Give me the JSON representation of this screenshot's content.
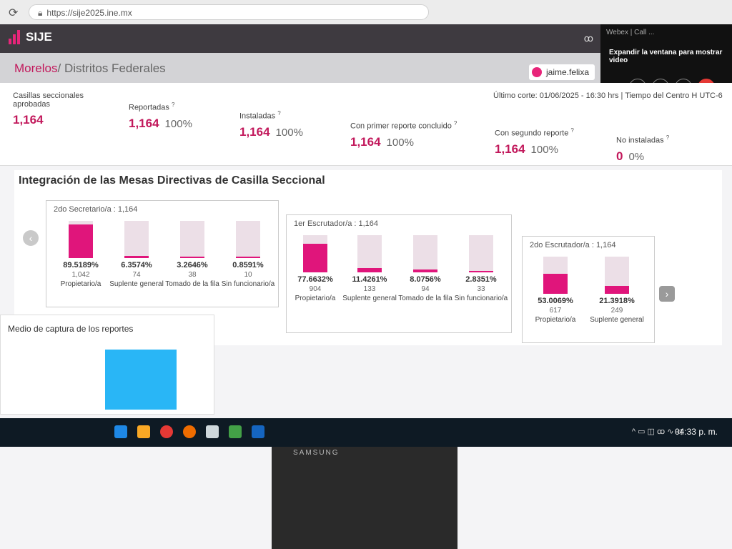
{
  "browser": {
    "url": "https://sije2025.ine.mx"
  },
  "app": {
    "logo_text": "SIJE",
    "extension_label": "ꝏ"
  },
  "video_panel": {
    "title": "Webex | Call ...",
    "message": "Expandir la ventana para mostrar video"
  },
  "breadcrumb": {
    "current": "Morelos",
    "separator": "/",
    "rest": "Distritos Federales"
  },
  "user": {
    "name": "jaime.felixa"
  },
  "cutoff": "Último corte: 01/06/2025 - 16:30 hrs  |  Tiempo del Centro H UTC-6",
  "stats": [
    {
      "label": "Casillas seccionales aprobadas",
      "value": "1,164",
      "pct": ""
    },
    {
      "label": "Reportadas",
      "value": "1,164",
      "pct": "100%"
    },
    {
      "label": "Instaladas",
      "value": "1,164",
      "pct": "100%"
    },
    {
      "label": "Con primer reporte concluido",
      "value": "1,164",
      "pct": "100%"
    },
    {
      "label": "Con segundo reporte",
      "value": "1,164",
      "pct": "100%"
    },
    {
      "label": "No instaladas",
      "value": "0",
      "pct": "0%"
    }
  ],
  "integration": {
    "title": "Integración de las Mesas Directivas de Casilla Seccional",
    "cards": [
      {
        "title": "2do Secretario/a :  1,164",
        "items": [
          {
            "pct": "89.5189%",
            "count": "1,042",
            "label": "Propietario/a",
            "fraction": 0.895
          },
          {
            "pct": "6.3574%",
            "count": "74",
            "label": "Suplente general",
            "fraction": 0.064
          },
          {
            "pct": "3.2646%",
            "count": "38",
            "label": "Tomado de la fila",
            "fraction": 0.033
          },
          {
            "pct": "0.8591%",
            "count": "10",
            "label": "Sin funcionario/a",
            "fraction": 0.009
          }
        ]
      },
      {
        "title": "1er Escrutador/a :  1,164",
        "items": [
          {
            "pct": "77.6632%",
            "count": "904",
            "label": "Propietario/a",
            "fraction": 0.777
          },
          {
            "pct": "11.4261%",
            "count": "133",
            "label": "Suplente general",
            "fraction": 0.114
          },
          {
            "pct": "8.0756%",
            "count": "94",
            "label": "Tomado de la fila",
            "fraction": 0.081
          },
          {
            "pct": "2.8351%",
            "count": "33",
            "label": "Sin funcionario/a",
            "fraction": 0.028
          }
        ]
      },
      {
        "title": "2do Escrutador/a :  1,164",
        "items": [
          {
            "pct": "53.0069%",
            "count": "617",
            "label": "Propietario/a",
            "fraction": 0.53
          },
          {
            "pct": "21.3918%",
            "count": "249",
            "label": "Suplente general",
            "fraction": 0.214
          }
        ]
      }
    ]
  },
  "capture": {
    "title": "Medio de captura de los reportes"
  },
  "taskbar": {
    "clock": "04:33 p. m.",
    "tray": "^  ▭  ◫  ꝏ  ∿  ◁"
  },
  "monitor": {
    "brand": "SAMSUNG"
  },
  "colors": {
    "accent": "#e0157b",
    "bar_bg": "#ecdfe7",
    "header": "#3e3a40"
  }
}
